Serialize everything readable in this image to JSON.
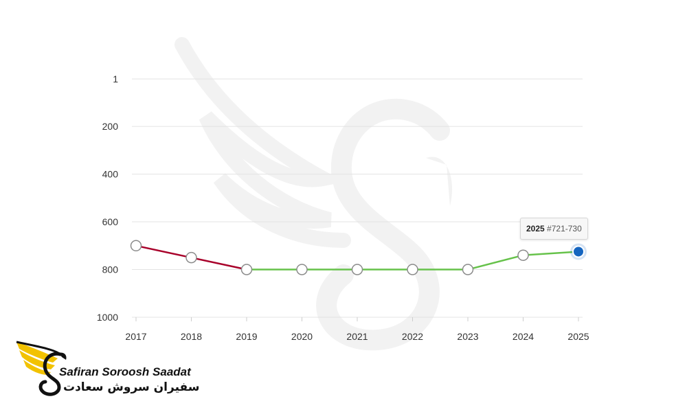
{
  "chart_data": {
    "type": "line",
    "categories": [
      "2017",
      "2018",
      "2019",
      "2020",
      "2021",
      "2022",
      "2023",
      "2024",
      "2025"
    ],
    "values": [
      700,
      750,
      800,
      800,
      800,
      800,
      800,
      740,
      725
    ],
    "y_reversed": true,
    "ylim": [
      1,
      1000
    ],
    "y_ticks": [
      1,
      200,
      400,
      600,
      800,
      1000
    ],
    "y_tick_labels": [
      "1",
      "200",
      "400",
      "600",
      "800",
      "1000"
    ],
    "grid": true,
    "segment_colors": [
      "#a8002a",
      "#a8002a",
      "#66c24a",
      "#66c24a",
      "#66c24a",
      "#66c24a",
      "#66c24a",
      "#66c24a"
    ],
    "highlight_index": 8,
    "highlight_color": "#1565c0",
    "tooltip": {
      "year": "2025",
      "rank": "#721-730"
    }
  },
  "logo": {
    "text_en": "Safiran Soroosh Saadat",
    "text_fa": "سفیران سروش سعادت",
    "accent_color": "#f2c200"
  }
}
